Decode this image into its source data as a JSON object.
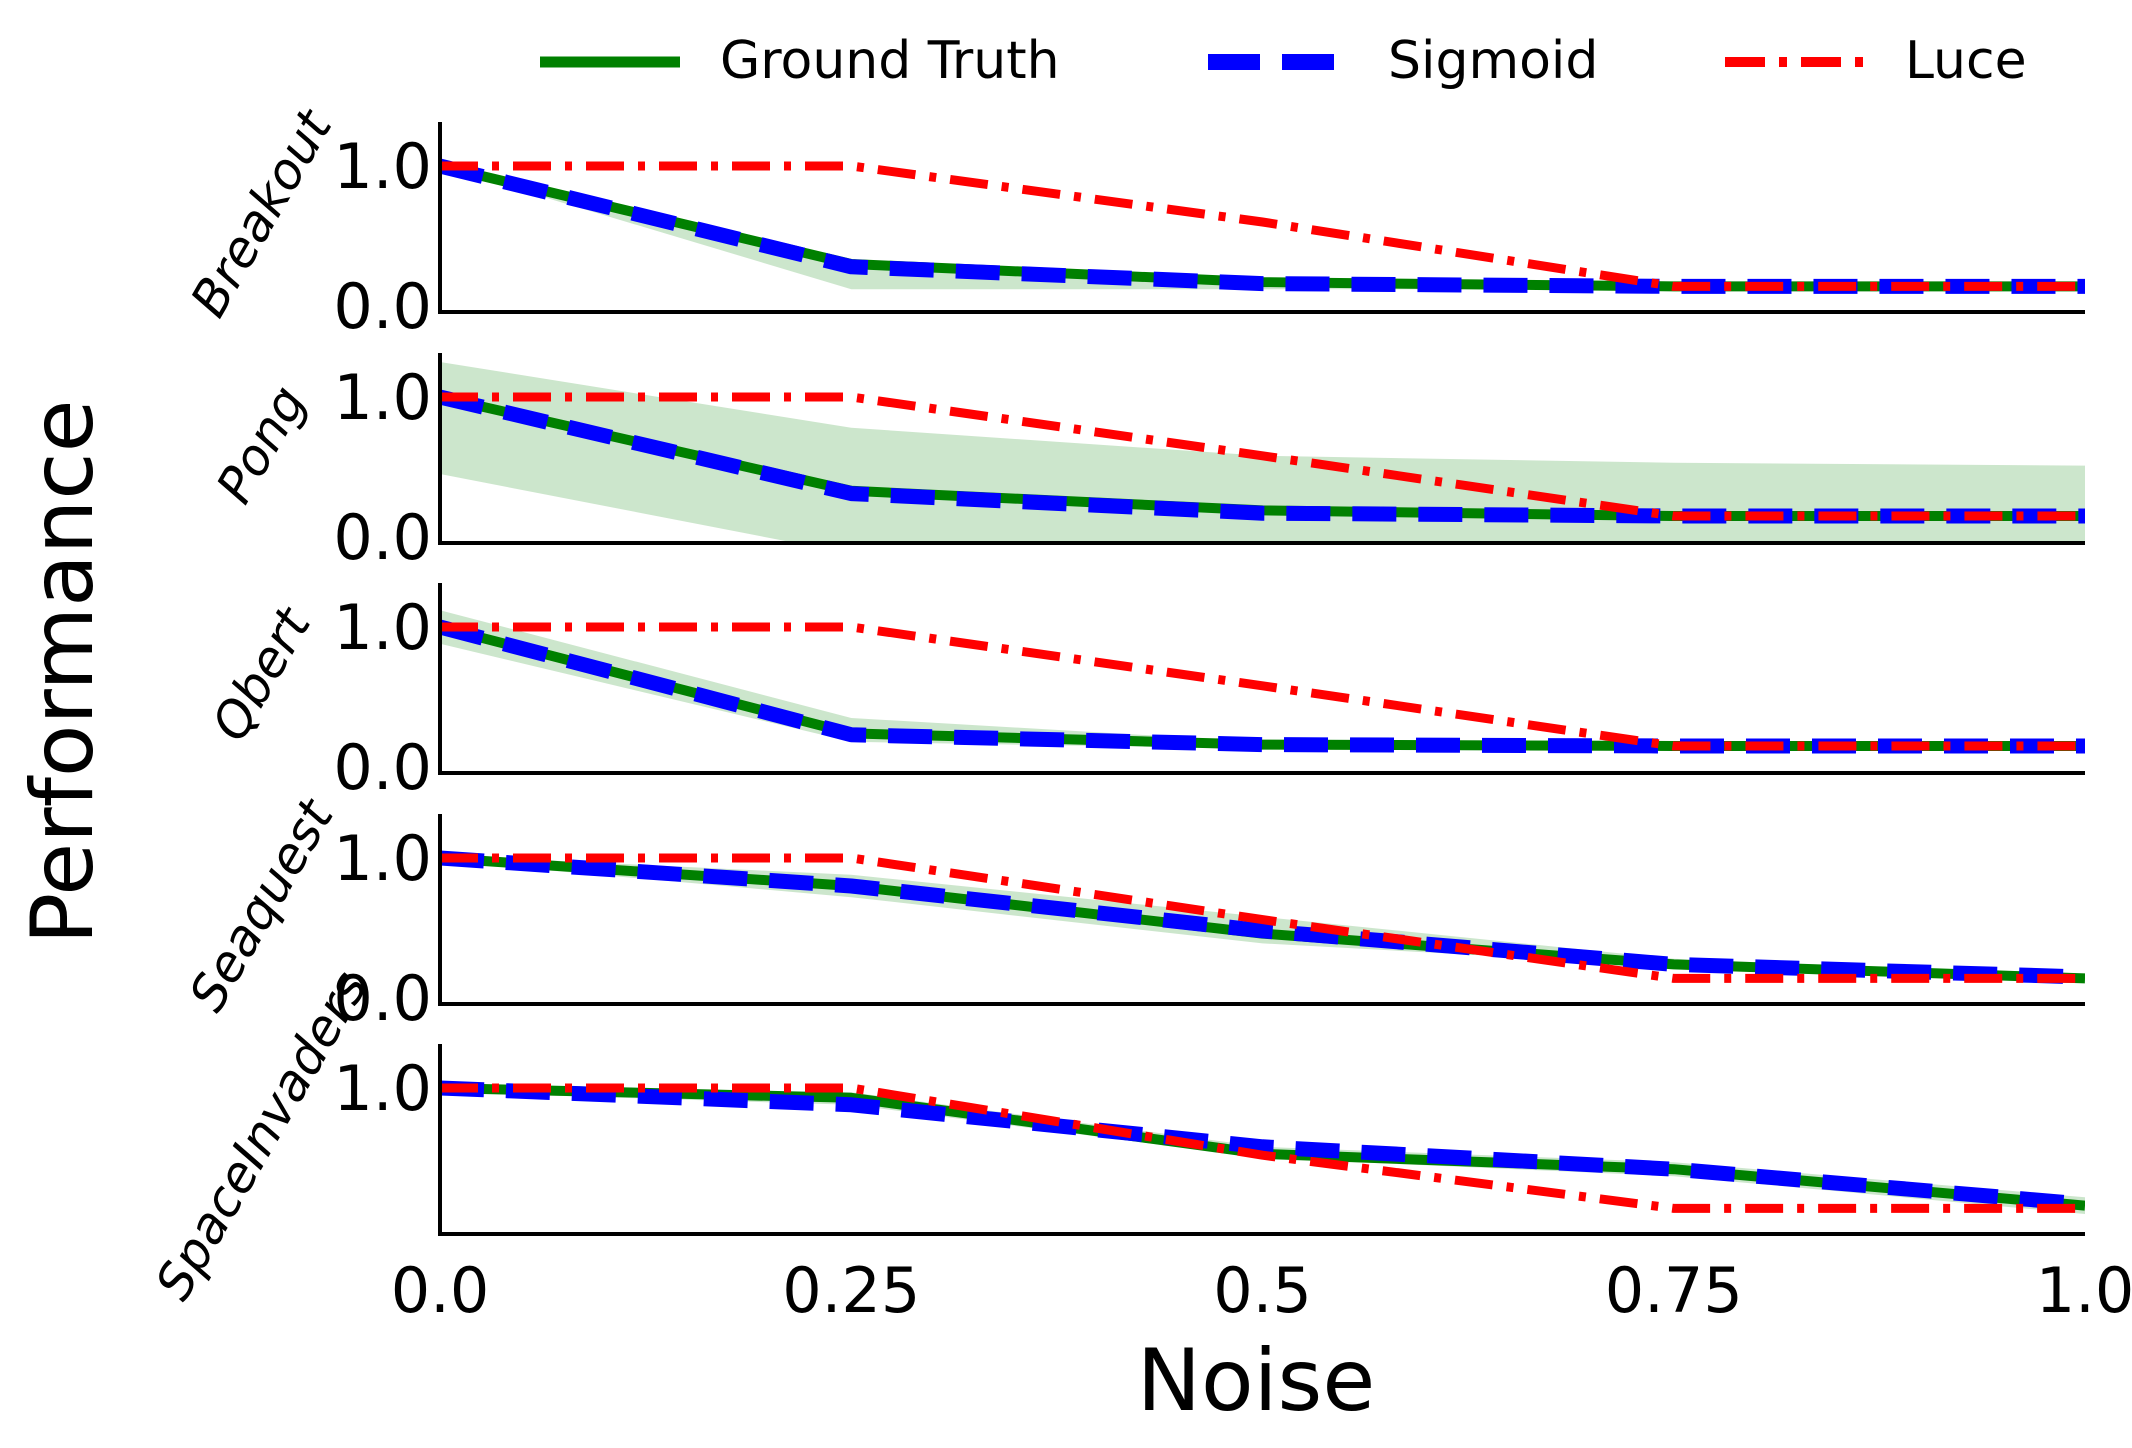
{
  "figure": {
    "ylabel": "Performance",
    "xlabel": "Noise"
  },
  "legend": {
    "placement": "top",
    "entries": [
      {
        "label": "Ground Truth",
        "color": "#008000",
        "style": "solid"
      },
      {
        "label": "Sigmoid",
        "color": "#0000ff",
        "style": "dashed"
      },
      {
        "label": "Luce",
        "color": "#ff0000",
        "style": "dashdot"
      }
    ]
  },
  "chart_data": {
    "type": "line",
    "title": "",
    "x": [
      0.0,
      0.25,
      0.5,
      0.75,
      1.0
    ],
    "x_tick_labels": [
      "0.0",
      "0.25",
      "0.5",
      "0.75",
      "1.0"
    ],
    "xlim": [
      0.0,
      1.0
    ],
    "ylim": [
      0.0,
      1.12
    ],
    "grid": false,
    "panels": [
      {
        "name": "Breakout",
        "y_tick_labels": [
          "1.0",
          "0.0"
        ],
        "band_upper": [
          1.0,
          0.3,
          0.13,
          0.12,
          0.12
        ],
        "band_lower": [
          1.0,
          0.12,
          0.12,
          0.12,
          0.12
        ],
        "series": [
          {
            "name": "Ground Truth",
            "values": [
              1.0,
              0.3,
              0.17,
              0.14,
              0.14
            ]
          },
          {
            "name": "Sigmoid",
            "values": [
              1.0,
              0.28,
              0.16,
              0.14,
              0.14
            ]
          },
          {
            "name": "Luce",
            "values": [
              1.0,
              1.0,
              0.6,
              0.14,
              0.14
            ]
          }
        ]
      },
      {
        "name": "Pong",
        "y_tick_labels": [
          "1.0",
          "0.0"
        ],
        "band_upper": [
          1.25,
          0.78,
          0.58,
          0.53,
          0.51
        ],
        "band_lower": [
          0.45,
          -0.12,
          -0.12,
          -0.12,
          -0.12
        ],
        "series": [
          {
            "name": "Ground Truth",
            "values": [
              1.0,
              0.33,
              0.19,
              0.15,
              0.15
            ]
          },
          {
            "name": "Sigmoid",
            "values": [
              1.0,
              0.31,
              0.17,
              0.15,
              0.15
            ]
          },
          {
            "name": "Luce",
            "values": [
              1.0,
              1.0,
              0.58,
              0.15,
              0.15
            ]
          }
        ]
      },
      {
        "name": "Qbert",
        "y_tick_labels": [
          "1.0",
          "0.0"
        ],
        "band_upper": [
          1.12,
          0.35,
          0.18,
          0.16,
          0.16
        ],
        "band_lower": [
          0.88,
          0.18,
          0.13,
          0.13,
          0.13
        ],
        "series": [
          {
            "name": "Ground Truth",
            "values": [
              1.0,
              0.24,
              0.16,
              0.15,
              0.15
            ]
          },
          {
            "name": "Sigmoid",
            "values": [
              1.0,
              0.23,
              0.16,
              0.15,
              0.15
            ]
          },
          {
            "name": "Luce",
            "values": [
              1.0,
              1.0,
              0.58,
              0.15,
              0.15
            ]
          }
        ]
      },
      {
        "name": "Seaquest",
        "y_tick_labels": [
          "1.0",
          "0.0"
        ],
        "band_upper": [
          1.02,
          0.88,
          0.58,
          0.28,
          0.16
        ],
        "band_lower": [
          0.98,
          0.72,
          0.39,
          0.23,
          0.12
        ],
        "series": [
          {
            "name": "Ground Truth",
            "values": [
              1.0,
              0.8,
              0.46,
              0.24,
              0.14
            ]
          },
          {
            "name": "Sigmoid",
            "values": [
              1.0,
              0.8,
              0.48,
              0.24,
              0.15
            ]
          },
          {
            "name": "Luce",
            "values": [
              1.0,
              1.0,
              0.56,
              0.14,
              0.14
            ]
          }
        ]
      },
      {
        "name": "SpaceInvaders",
        "y_tick_labels": [
          "1.0"
        ],
        "band_upper": [
          1.0,
          0.97,
          0.58,
          0.47,
          0.22
        ],
        "band_lower": [
          0.97,
          0.88,
          0.5,
          0.37,
          0.1
        ],
        "series": [
          {
            "name": "Ground Truth",
            "values": [
              1.0,
              0.93,
              0.53,
              0.42,
              0.16
            ]
          },
          {
            "name": "Sigmoid",
            "values": [
              1.0,
              0.88,
              0.58,
              0.42,
              0.17
            ]
          },
          {
            "name": "Luce",
            "values": [
              1.0,
              1.0,
              0.52,
              0.14,
              0.14
            ]
          }
        ]
      }
    ]
  }
}
